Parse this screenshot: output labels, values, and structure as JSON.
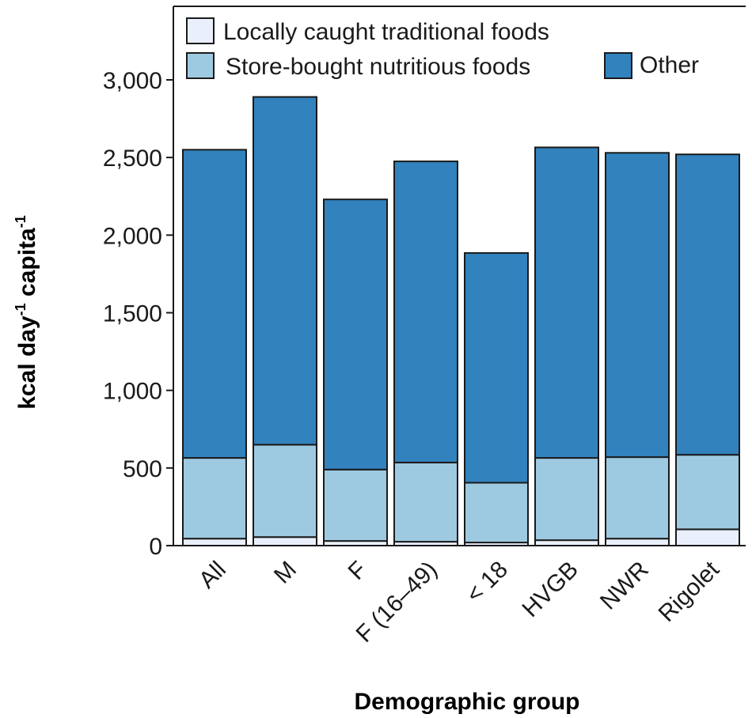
{
  "chart_data": {
    "type": "bar",
    "stacked": true,
    "categories": [
      "All",
      "M",
      "F",
      "F (16–49)",
      "< 18",
      "HVGB",
      "NWR",
      "Rigolet"
    ],
    "series": [
      {
        "name": "Locally caught traditional foods",
        "color": "#e9f0fb",
        "values": [
          45,
          55,
          30,
          25,
          20,
          35,
          45,
          105
        ]
      },
      {
        "name": "Store-bought nutritious foods",
        "color": "#9ecae1",
        "values": [
          520,
          595,
          460,
          510,
          385,
          530,
          525,
          480
        ]
      },
      {
        "name": "Other",
        "color": "#3182bd",
        "values": [
          1985,
          2240,
          1740,
          1940,
          1480,
          2000,
          1960,
          1935
        ]
      }
    ],
    "totals": [
      2550,
      2890,
      2230,
      2475,
      1885,
      2565,
      2530,
      2520
    ],
    "ylim": [
      0,
      3300
    ],
    "yticks": [
      0,
      500,
      1000,
      1500,
      2000,
      2500,
      3000
    ],
    "ytick_labels": [
      "0",
      "500",
      "1,000",
      "1,500",
      "2,000",
      "2,500",
      "3,000"
    ],
    "xlabel": "Demographic group",
    "ylabel": {
      "parts": [
        "kcal day",
        "-1",
        " capita",
        "-1"
      ]
    },
    "legend_position": "top",
    "grid": false
  }
}
